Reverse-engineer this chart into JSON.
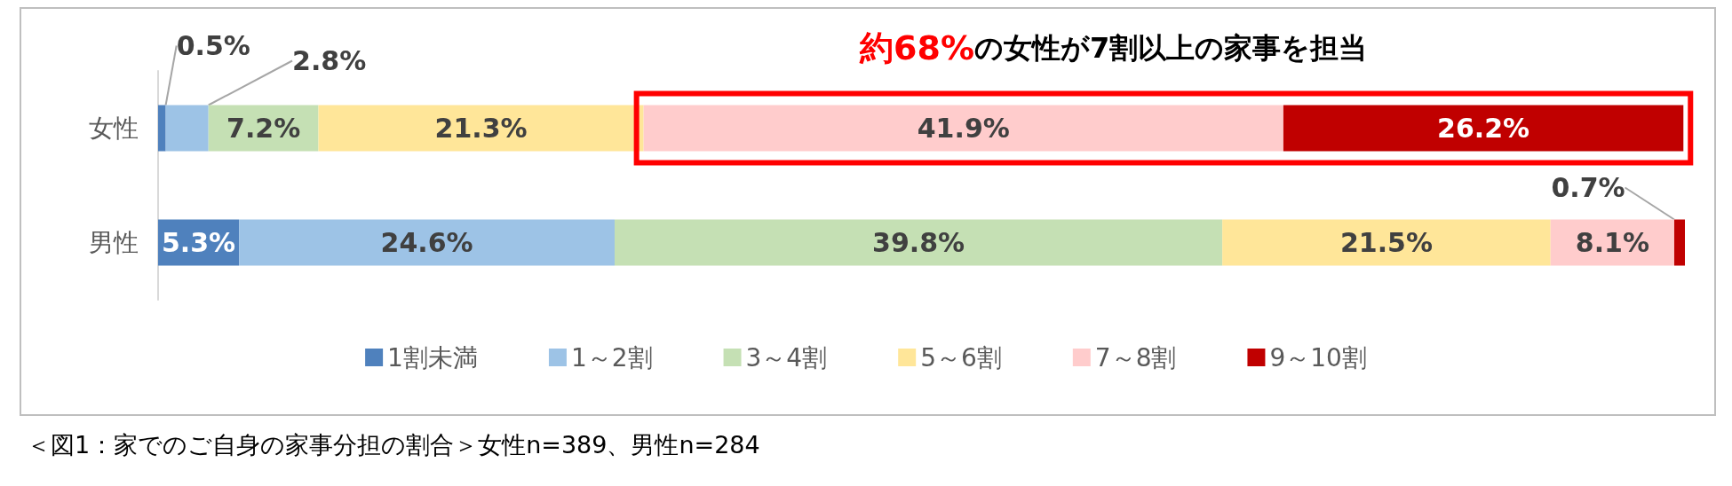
{
  "chart_data": {
    "type": "bar",
    "orientation": "horizontal",
    "stacked": true,
    "title": "約68%の女性が7割以上の家事を担当",
    "categories": [
      "女性",
      "男性"
    ],
    "series": [
      {
        "name": "1割未満",
        "color": "#4f81bd",
        "values": [
          0.5,
          5.3
        ],
        "value_labels": [
          "0.5%",
          "5.3%"
        ]
      },
      {
        "name": "1～2割",
        "color": "#9dc3e6",
        "values": [
          2.8,
          24.6
        ],
        "value_labels": [
          "2.8%",
          "24.6%"
        ]
      },
      {
        "name": "3～4割",
        "color": "#c5e0b4",
        "values": [
          7.2,
          39.8
        ],
        "value_labels": [
          "7.2%",
          "39.8%"
        ]
      },
      {
        "name": "5～6割",
        "color": "#ffe699",
        "values": [
          21.3,
          21.5
        ],
        "value_labels": [
          "21.3%",
          "21.5%"
        ]
      },
      {
        "name": "7～8割",
        "color": "#ffcccc",
        "values": [
          41.9,
          8.1
        ],
        "value_labels": [
          "41.9%",
          "8.1%"
        ]
      },
      {
        "name": "9～10割",
        "color": "#c00000",
        "values": [
          26.2,
          0.7
        ],
        "value_labels": [
          "26.2%",
          "0.7%"
        ]
      }
    ],
    "xlim": [
      0,
      100
    ],
    "tick_labels": "y",
    "legend": "bottom",
    "annotations": [
      "＜図1：家でのご自身の家事分担の割合＞女性n=389、男性n=284"
    ]
  }
}
